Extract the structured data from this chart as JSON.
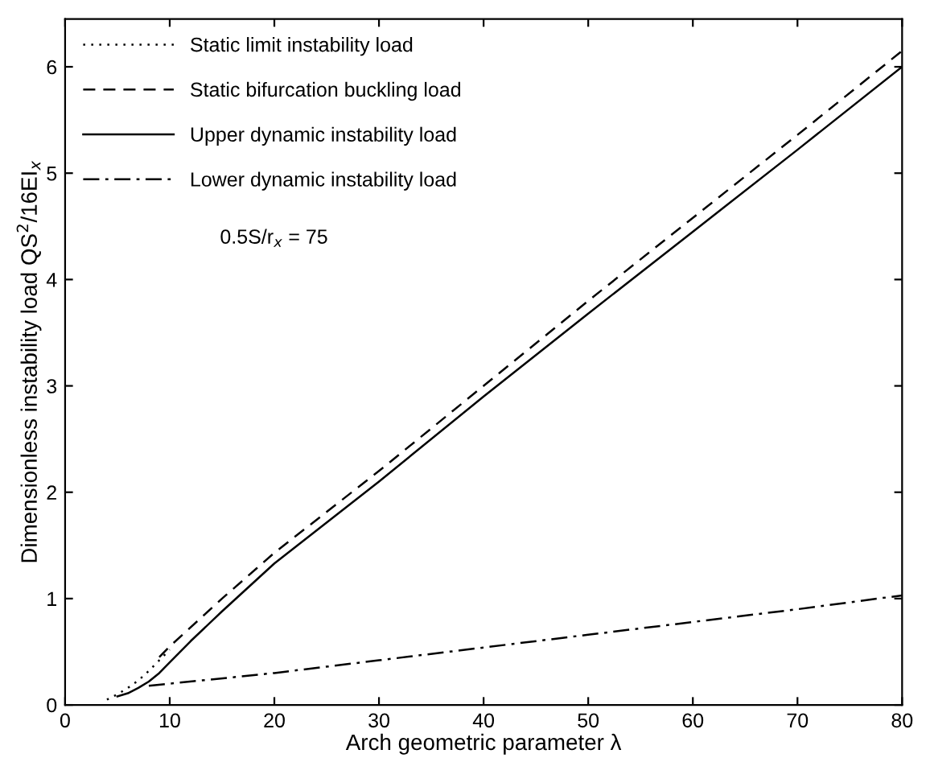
{
  "chart_data": {
    "type": "line",
    "xlabel": "Arch geometric parameter λ",
    "ylabel": "Dimensionless instability load QS$^{2}$/16EI$_{x}$",
    "annotations": [
      "0.5S/r$_{x}$ = 75"
    ],
    "xlim": [
      0,
      80
    ],
    "ylim": [
      0,
      6.45
    ],
    "xticks": [
      0,
      10,
      20,
      30,
      40,
      50,
      60,
      70,
      80
    ],
    "yticks": [
      0,
      1,
      2,
      3,
      4,
      5,
      6
    ],
    "grid": false,
    "legend": "top left",
    "marker": "none",
    "series": [
      {
        "name": "Static limit instability load",
        "color": "#000000",
        "line_style": "dotted",
        "x": [
          4,
          5,
          6,
          7,
          8,
          9,
          10
        ],
        "values": [
          0.05,
          0.1,
          0.16,
          0.23,
          0.32,
          0.42,
          0.52
        ]
      },
      {
        "name": "Static bifurcation buckling load",
        "color": "#000000",
        "line_style": "dashed",
        "x": [
          9,
          10,
          15,
          20,
          30,
          40,
          50,
          60,
          70,
          80
        ],
        "values": [
          0.45,
          0.55,
          1.0,
          1.43,
          2.2,
          3.0,
          3.8,
          4.58,
          5.36,
          6.15
        ]
      },
      {
        "name": "Upper dynamic instability load",
        "color": "#000000",
        "line_style": "solid",
        "x": [
          5,
          6,
          7,
          8,
          9,
          10,
          12,
          15,
          20,
          30,
          40,
          50,
          60,
          70,
          80
        ],
        "values": [
          0.08,
          0.11,
          0.16,
          0.22,
          0.3,
          0.4,
          0.6,
          0.88,
          1.33,
          2.1,
          2.9,
          3.68,
          4.45,
          5.22,
          6.0
        ]
      },
      {
        "name": "Lower dynamic instability load",
        "color": "#000000",
        "line_style": "dashdot",
        "x": [
          8,
          10,
          20,
          30,
          40,
          50,
          60,
          70,
          80
        ],
        "values": [
          0.18,
          0.2,
          0.3,
          0.42,
          0.54,
          0.66,
          0.78,
          0.9,
          1.03
        ]
      }
    ]
  }
}
